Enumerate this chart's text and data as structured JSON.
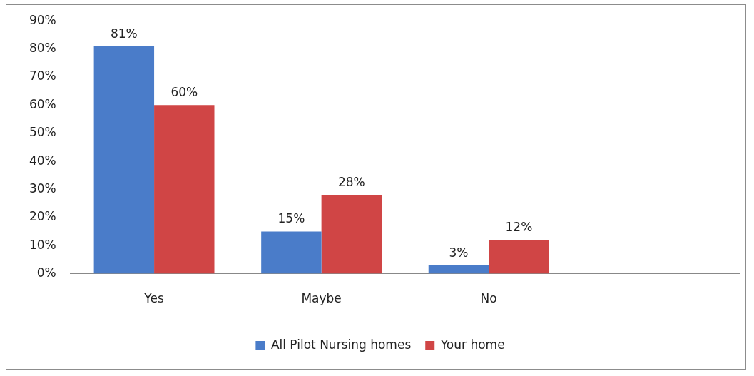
{
  "chart_data": {
    "type": "bar",
    "categories": [
      "Yes",
      "Maybe",
      "No",
      null
    ],
    "series": [
      {
        "name": "All Pilot Nursing homes",
        "color": "#4a7cc9",
        "values": [
          81,
          15,
          3,
          null
        ],
        "value_labels": [
          "81%",
          "15%",
          "3%",
          null
        ]
      },
      {
        "name": "Your home",
        "color": "#d04545",
        "values": [
          60,
          28,
          12,
          null
        ],
        "value_labels": [
          "60%",
          "28%",
          "12%",
          null
        ]
      }
    ],
    "ylim": [
      0,
      90
    ],
    "yticks": [
      {
        "value": 0,
        "label": "0%"
      },
      {
        "value": 10,
        "label": "10%"
      },
      {
        "value": 20,
        "label": "20%"
      },
      {
        "value": 30,
        "label": "30%"
      },
      {
        "value": 40,
        "label": "40%"
      },
      {
        "value": 50,
        "label": "50%"
      },
      {
        "value": 60,
        "label": "60%"
      },
      {
        "value": 70,
        "label": "70%"
      },
      {
        "value": 80,
        "label": "80%"
      },
      {
        "value": 90,
        "label": "90%"
      }
    ],
    "grid": false,
    "legend": "bottom"
  }
}
